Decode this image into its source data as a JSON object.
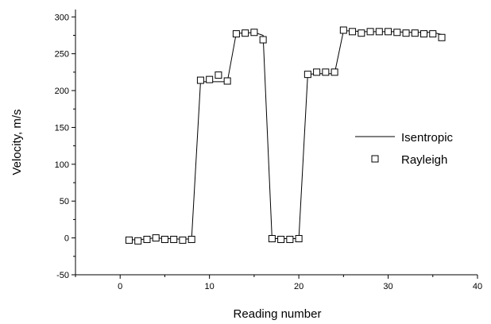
{
  "chart_data": {
    "type": "line",
    "xlabel": "Reading number",
    "ylabel": "Velocity, m/s",
    "xlim": [
      -5,
      40
    ],
    "ylim": [
      -50,
      310
    ],
    "xticks": [
      0,
      10,
      20,
      30,
      40
    ],
    "yticks": [
      -50,
      0,
      50,
      100,
      150,
      200,
      250,
      300
    ],
    "grid": false,
    "legend_position": "right",
    "series": [
      {
        "name": "Isentropic",
        "kind": "line",
        "color": "#000000",
        "x": [
          1,
          2,
          3,
          4,
          5,
          6,
          7,
          8,
          9,
          10,
          11,
          12,
          13,
          14,
          15,
          16,
          17,
          18,
          19,
          20,
          21,
          22,
          23,
          24,
          25,
          26,
          27,
          28,
          29,
          30,
          31,
          32,
          33,
          34,
          35,
          36
        ],
        "y": [
          -2,
          -3,
          -1,
          0,
          -1,
          -1,
          -2,
          -1,
          212,
          212,
          212,
          212,
          278,
          278,
          279,
          275,
          -1,
          -1,
          -1,
          -1,
          222,
          223,
          223,
          223,
          281,
          281,
          280,
          280,
          280,
          280,
          280,
          279,
          279,
          279,
          279,
          276
        ]
      },
      {
        "name": "Rayleigh",
        "kind": "scatter",
        "marker": "open-square",
        "color": "#000000",
        "x": [
          1,
          2,
          3,
          4,
          5,
          6,
          7,
          8,
          9,
          10,
          11,
          12,
          13,
          14,
          15,
          16,
          17,
          18,
          19,
          20,
          21,
          22,
          23,
          24,
          25,
          26,
          27,
          28,
          29,
          30,
          31,
          32,
          33,
          34,
          35,
          36
        ],
        "y": [
          -3,
          -4,
          -2,
          0,
          -2,
          -2,
          -3,
          -2,
          214,
          215,
          221,
          213,
          277,
          278,
          279,
          269,
          -1,
          -2,
          -2,
          -1,
          222,
          225,
          225,
          225,
          282,
          280,
          278,
          280,
          280,
          280,
          279,
          278,
          278,
          277,
          277,
          272
        ]
      }
    ]
  }
}
